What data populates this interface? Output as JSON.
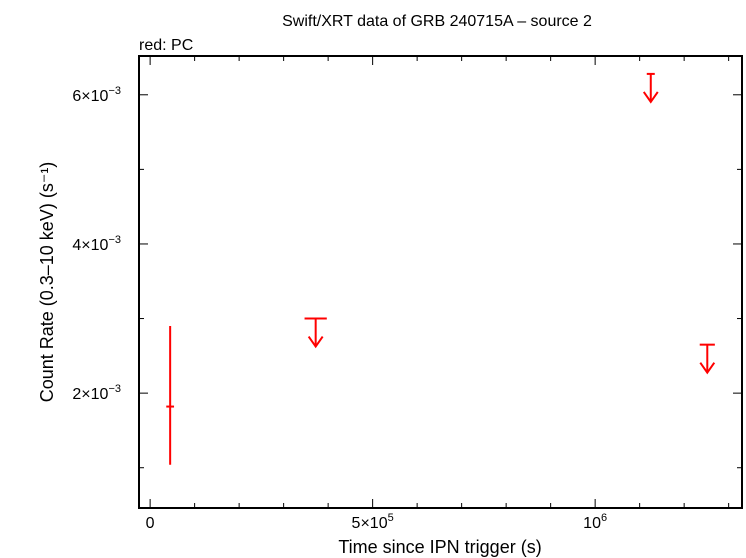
{
  "chart_data": {
    "type": "scatter",
    "title": "Swift/XRT data of GRB 240715A – source 2",
    "subtitle": "red: PC",
    "xlabel": "Time since IPN trigger (s)",
    "ylabel": "Count Rate (0.3–10 keV) (s⁻¹)",
    "xlim": [
      -25000,
      1330000
    ],
    "ylim": [
      0.00046,
      0.00652
    ],
    "x_ticks": [
      {
        "value": 0,
        "base": "0",
        "exp": ""
      },
      {
        "value": 500000,
        "base": "5×10",
        "exp": "5"
      },
      {
        "value": 1000000,
        "base": "10",
        "exp": "6"
      }
    ],
    "y_ticks": [
      {
        "value": 0.002,
        "base": "2×10",
        "exp": "−3"
      },
      {
        "value": 0.004,
        "base": "4×10",
        "exp": "−3"
      },
      {
        "value": 0.006,
        "base": "6×10",
        "exp": "−3"
      }
    ],
    "series_color": "#ff0000",
    "points": [
      {
        "x": 45000,
        "y": 0.00182,
        "ylo": 0.00104,
        "yhi": 0.0029,
        "xerr": 2000
      }
    ],
    "upper_limits": [
      {
        "x": 372000,
        "y": 0.003,
        "xerr": 25000
      },
      {
        "x": 1125000,
        "y": 0.00628,
        "xerr": 9000
      },
      {
        "x": 1252000,
        "y": 0.00265,
        "xerr": 17000
      }
    ]
  }
}
